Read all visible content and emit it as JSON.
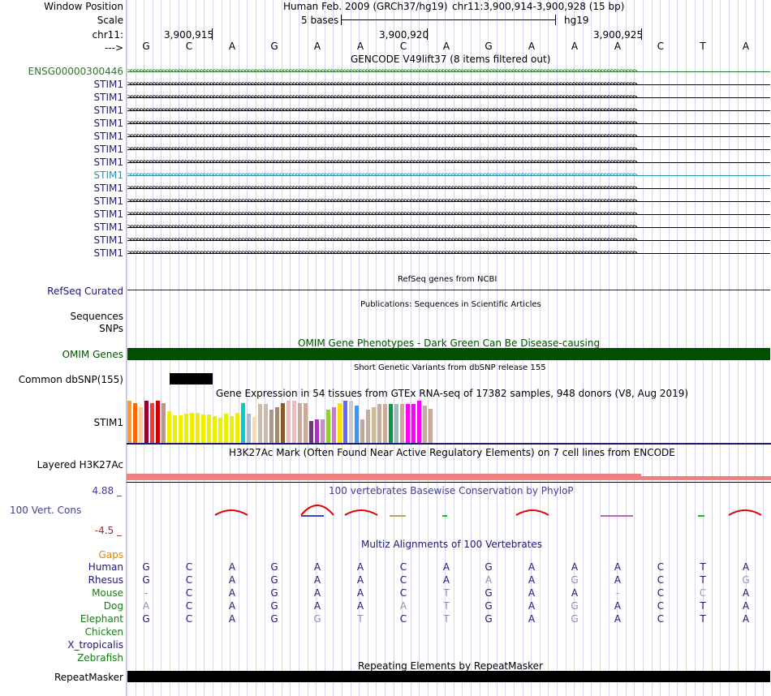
{
  "header": {
    "window_position_label": "Window Position",
    "scale_label": "Scale",
    "chrom_label": "chr11:",
    "strand_label": "--->",
    "assembly": "Human Feb. 2009 (GRCh37/hg19)",
    "position": "chr11:3,900,914-3,900,928 (15 bp)",
    "scale_text": "5 bases",
    "db": "hg19",
    "ticks": [
      "3,900,915",
      "3,900,920",
      "3,900,925"
    ],
    "bases": [
      "G",
      "C",
      "A",
      "G",
      "A",
      "A",
      "C",
      "A",
      "G",
      "A",
      "A",
      "A",
      "C",
      "T",
      "A"
    ]
  },
  "gencode": {
    "title": "GENCODE V49lift37 (8 items filtered out)",
    "first_label": "ENSG00000300446",
    "stim1_labels": [
      "STIM1",
      "STIM1",
      "STIM1",
      "STIM1",
      "STIM1",
      "STIM1",
      "STIM1",
      "STIM1",
      "STIM1",
      "STIM1",
      "STIM1",
      "STIM1",
      "STIM1",
      "STIM1"
    ]
  },
  "refseq": {
    "title": "RefSeq genes from NCBI",
    "label": "RefSeq Curated"
  },
  "publications": {
    "title": "Publications: Sequences in Scientific Articles",
    "label1": "Sequences",
    "label2": "SNPs"
  },
  "omim": {
    "title": "OMIM Gene Phenotypes - Dark Green Can Be Disease-causing",
    "label": "OMIM Genes",
    "color": "#005000"
  },
  "dbsnp": {
    "title": "Short Genetic Variants from dbSNP release 155",
    "label": "Common dbSNP(155)"
  },
  "gtex": {
    "title": "Gene Expression in 54 tissues from GTEx RNA-seq of 17382 samples, 948 donors (V8, Aug 2019)",
    "label": "STIM1",
    "levels": [
      1.0,
      0.95,
      0.85,
      1.0,
      0.95,
      1.0,
      0.95,
      0.75,
      0.65,
      0.65,
      0.7,
      0.72,
      0.72,
      0.68,
      0.68,
      0.63,
      0.6,
      0.7,
      0.63,
      0.72,
      0.95,
      0.7,
      0.62,
      0.92,
      0.92,
      0.78,
      0.85,
      0.95,
      1.0,
      1.0,
      0.95,
      0.95,
      0.52,
      0.55,
      0.55,
      0.78,
      0.85,
      0.95,
      1.0,
      1.0,
      0.88,
      0.55,
      0.78,
      0.85,
      0.92,
      0.92,
      0.92,
      0.92,
      0.92,
      0.92,
      0.92,
      1.0,
      0.88,
      0.8
    ],
    "colors": [
      "#ff9933",
      "#ff6600",
      "#ffcc99",
      "#990033",
      "#ff3333",
      "#cc0000",
      "#bb9988",
      "#eeee00",
      "#eeee00",
      "#eeee00",
      "#eeee00",
      "#eeee00",
      "#eeee00",
      "#eeee00",
      "#eeee00",
      "#eeee00",
      "#eeee00",
      "#eeee00",
      "#eeee00",
      "#eeee00",
      "#00cccc",
      "#aabbcc",
      "#ffd5aa",
      "#ccbbaa",
      "#ccbbaa",
      "#aa9988",
      "#aa8866",
      "#8b5a2b",
      "#eebbbb",
      "#eebbbb",
      "#ccaa99",
      "#ccaa99",
      "#773377",
      "#aa33bb",
      "#cc88cc",
      "#99cc33",
      "#cc77dd",
      "#ffdd00",
      "#6666ff",
      "#cccccc",
      "#3399ff",
      "#bbaa99",
      "#ccaa99",
      "#ccbb99",
      "#ccaa99",
      "#ccaa99",
      "#009944",
      "#a0b8b8",
      "#ccaa99",
      "#ff00ff",
      "#ff00ff",
      "#ff00ff",
      "#ccaa99",
      "#ccaa99"
    ]
  },
  "h3k27ac": {
    "title": "H3K27Ac Mark (Often Found Near Active Regulatory Elements) on 7 cell lines from ENCODE",
    "label": "Layered H3K27Ac"
  },
  "phylop": {
    "title": "100 vertebrates Basewise Conservation by PhyloP",
    "label": "100 Vert. Cons",
    "max": "4.88 _",
    "min": "-4.5 _"
  },
  "multiz": {
    "title": "Multiz Alignments of 100 Vertebrates",
    "gaps_label": "Gaps",
    "species": [
      {
        "name": "Human",
        "bases": [
          "G",
          "C",
          "A",
          "G",
          "A",
          "A",
          "C",
          "A",
          "G",
          "A",
          "A",
          "A",
          "C",
          "T",
          "A"
        ]
      },
      {
        "name": "Rhesus",
        "bases": [
          "G",
          "C",
          "A",
          "G",
          "A",
          "A",
          "C",
          "A",
          "A",
          "A",
          "G",
          "A",
          "C",
          "T",
          "G"
        ]
      },
      {
        "name": "Mouse",
        "bases": [
          "-",
          "C",
          "A",
          "G",
          "A",
          "A",
          "C",
          "T",
          "G",
          "A",
          "A",
          "-",
          "C",
          "C",
          "A"
        ]
      },
      {
        "name": "Dog",
        "bases": [
          "A",
          "C",
          "A",
          "G",
          "A",
          "A",
          "A",
          "T",
          "G",
          "A",
          "G",
          "A",
          "C",
          "T",
          "A"
        ]
      },
      {
        "name": "Elephant",
        "bases": [
          "G",
          "C",
          "A",
          "G",
          "G",
          "T",
          "C",
          "T",
          "G",
          "A",
          "G",
          "A",
          "C",
          "T",
          "A"
        ]
      },
      {
        "name": "Chicken",
        "bases": []
      },
      {
        "name": "X_tropicalis",
        "bases": []
      },
      {
        "name": "Zebrafish",
        "bases": []
      }
    ]
  },
  "repeatmasker": {
    "title": "Repeating Elements by RepeatMasker",
    "label": "RepeatMasker"
  }
}
